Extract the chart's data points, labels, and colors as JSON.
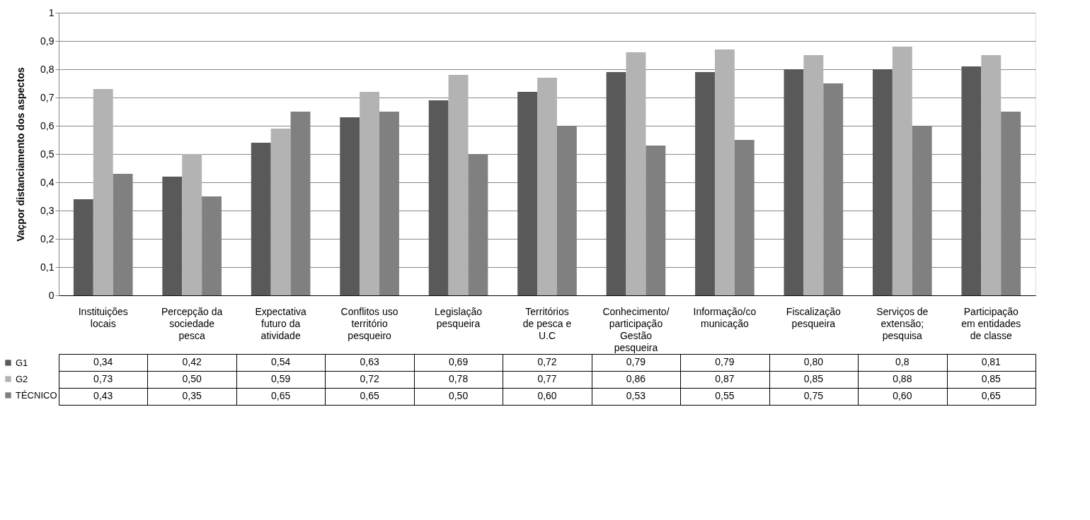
{
  "chart_data": {
    "type": "bar",
    "ylabel": "Vaçpor distanciamento dos aspectos",
    "categories": [
      "Instituições locais",
      "Percepção da sociedade pesca",
      "Expectativa futuro da atividade",
      "Conflitos uso território pesqueiro",
      "Legislação pesqueira",
      "Territórios de pesca e U.C",
      "Conhecimento/participação Gestão pesqueira",
      "Informação/comunicação",
      "Fiscalização pesqueira",
      "Serviços de extensão; pesquisa",
      "Participação em entidades de classe"
    ],
    "series": [
      {
        "name": "G1",
        "color": "#595959",
        "values": [
          0.34,
          0.42,
          0.54,
          0.63,
          0.69,
          0.72,
          0.79,
          0.79,
          0.8,
          0.8,
          0.81
        ],
        "value_labels": [
          "0,34",
          "0,42",
          "0,54",
          "0,63",
          "0,69",
          "0,72",
          "0,79",
          "0,79",
          "0,80",
          "0,8",
          "0,81"
        ]
      },
      {
        "name": "G2",
        "color": "#b3b3b3",
        "values": [
          0.73,
          0.5,
          0.59,
          0.72,
          0.78,
          0.77,
          0.86,
          0.87,
          0.85,
          0.88,
          0.85
        ],
        "value_labels": [
          "0,73",
          "0,50",
          "0,59",
          "0,72",
          "0,78",
          "0,77",
          "0,86",
          "0,87",
          "0,85",
          "0,88",
          "0,85"
        ]
      },
      {
        "name": "TÉCNICO",
        "color": "#808080",
        "values": [
          0.43,
          0.35,
          0.65,
          0.65,
          0.5,
          0.6,
          0.53,
          0.55,
          0.75,
          0.6,
          0.65
        ],
        "value_labels": [
          "0,43",
          "0,35",
          "0,65",
          "0,65",
          "0,50",
          "0,60",
          "0,53",
          "0,55",
          "0,75",
          "0,60",
          "0,65"
        ]
      }
    ],
    "ylim": [
      0,
      1
    ],
    "yticks": [
      0,
      {
        "value": 0.1,
        "label": "0,1"
      },
      {
        "value": 0.2,
        "label": "0,2"
      },
      {
        "value": 0.3,
        "label": "0,3"
      },
      {
        "value": 0.4,
        "label": "0,4"
      },
      {
        "value": 0.5,
        "label": "0,5"
      },
      {
        "value": 0.6,
        "label": "0,6"
      },
      {
        "value": 0.7,
        "label": "0,7"
      },
      {
        "value": 0.8,
        "label": "0,8"
      },
      {
        "value": 0.9,
        "label": "0,9"
      },
      1
    ],
    "grid": "y",
    "legend": "bottom left"
  }
}
